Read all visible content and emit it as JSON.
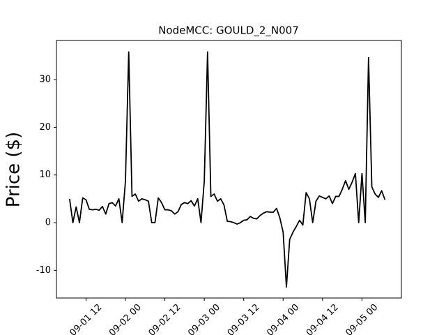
{
  "chart_data": {
    "type": "line",
    "title": "NodeMCC: GOULD_2_N007",
    "y_label": "Price ($)",
    "x": [
      "09-01 07",
      "09-01 08",
      "09-01 09",
      "09-01 10",
      "09-01 11",
      "09-01 12",
      "09-01 13",
      "09-01 14",
      "09-01 15",
      "09-01 16",
      "09-01 17",
      "09-01 18",
      "09-01 19",
      "09-01 20",
      "09-01 21",
      "09-01 22",
      "09-01 23",
      "09-02 00",
      "09-02 01",
      "09-02 02",
      "09-02 03",
      "09-02 04",
      "09-02 05",
      "09-02 06",
      "09-02 07",
      "09-02 08",
      "09-02 09",
      "09-02 10",
      "09-02 11",
      "09-02 12",
      "09-02 13",
      "09-02 14",
      "09-02 15",
      "09-02 16",
      "09-02 17",
      "09-02 18",
      "09-02 19",
      "09-02 20",
      "09-02 21",
      "09-02 22",
      "09-02 23",
      "09-03 00",
      "09-03 01",
      "09-03 02",
      "09-03 03",
      "09-03 04",
      "09-03 05",
      "09-03 06",
      "09-03 07",
      "09-03 08",
      "09-03 09",
      "09-03 10",
      "09-03 11",
      "09-03 12",
      "09-03 13",
      "09-03 14",
      "09-03 15",
      "09-03 16",
      "09-03 17",
      "09-03 18",
      "09-03 19",
      "09-03 20",
      "09-03 21",
      "09-03 22",
      "09-03 23",
      "09-04 00",
      "09-04 01",
      "09-04 02",
      "09-04 03",
      "09-04 04",
      "09-04 05",
      "09-04 06",
      "09-04 07",
      "09-04 08",
      "09-04 09",
      "09-04 10",
      "09-04 11",
      "09-04 12",
      "09-04 13",
      "09-04 14",
      "09-04 15",
      "09-04 16",
      "09-04 17",
      "09-04 18",
      "09-04 19",
      "09-04 20",
      "09-04 21",
      "09-04 22",
      "09-04 23",
      "09-05 00",
      "09-05 01",
      "09-05 02",
      "09-05 03",
      "09-05 04",
      "09-05 05",
      "09-05 06",
      "09-05 07"
    ],
    "series": [
      {
        "name": "Price",
        "color": "#000000",
        "values": [
          5,
          0,
          3.3,
          0,
          5.2,
          4.8,
          2.8,
          2.7,
          2.8,
          2.6,
          3.4,
          1.8,
          4.0,
          4.2,
          3.5,
          5.0,
          0,
          8.7,
          35.8,
          5.5,
          6,
          4.5,
          5,
          4.8,
          4.5,
          0,
          0,
          5.2,
          4.2,
          2.7,
          2.7,
          2.5,
          1.8,
          2.3,
          3.8,
          4.2,
          4.0,
          4.6,
          3.5,
          5.0,
          0,
          8.7,
          35.8,
          5.5,
          6,
          4.5,
          5,
          3.7,
          0.3,
          0.2,
          0,
          -0.3,
          0,
          0.5,
          0.6,
          1.3,
          0.9,
          0.8,
          1.5,
          2.0,
          2.3,
          2.2,
          2.2,
          3.0,
          1.0,
          -2,
          -13.5,
          -3.5,
          -2,
          -0.8,
          0.5,
          -0.5,
          6.3,
          5,
          0,
          4.5,
          5.6,
          5.3,
          5.0,
          5.6,
          4.0,
          5.5,
          5.5,
          7.0,
          8.8,
          7.0,
          8.5,
          10.3,
          0,
          10.3,
          0,
          34.6,
          7.5,
          6,
          5.3,
          6.7,
          4.8
        ]
      }
    ],
    "xlim": [
      "09-01 03",
      "09-05 12"
    ],
    "xticks": [
      "09-01 12",
      "09-02 00",
      "09-02 12",
      "09-03 00",
      "09-03 12",
      "09-04 00",
      "09-04 12",
      "09-05 00"
    ],
    "ylim": [
      -15.8,
      38.2
    ],
    "yticks": [
      -10,
      0,
      10,
      20,
      30
    ]
  }
}
